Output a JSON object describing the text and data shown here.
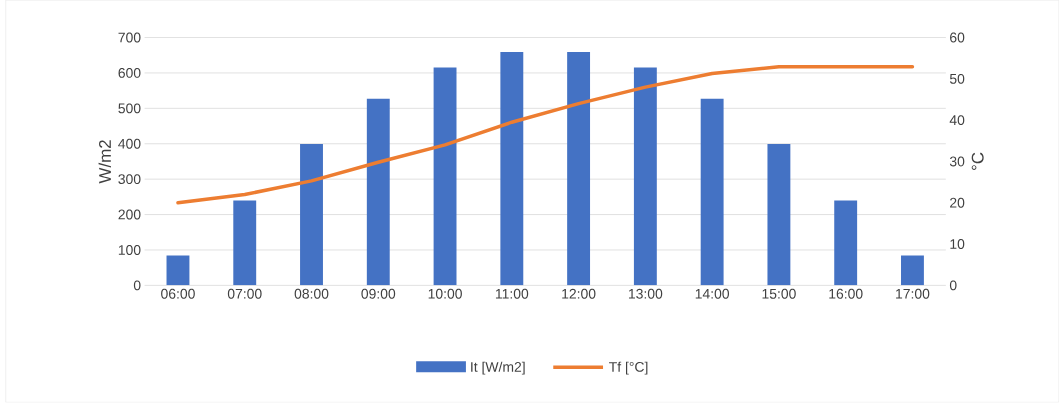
{
  "chart_data": {
    "type": "bar",
    "categories": [
      "06:00",
      "07:00",
      "08:00",
      "09:00",
      "10:00",
      "11:00",
      "12:00",
      "13:00",
      "14:00",
      "15:00",
      "16:00",
      "17:00"
    ],
    "series": [
      {
        "name": "It [W/m2]",
        "color": "#4472c4",
        "values": [
          84,
          240,
          399,
          527,
          615,
          659,
          659,
          615,
          527,
          399,
          240,
          84
        ]
      },
      {
        "name": "Tf [°C]",
        "color": "#ed7d31",
        "type": "line",
        "axis": "y2",
        "values": [
          20.0,
          22.0,
          25.3,
          29.8,
          34.0,
          39.5,
          44.0,
          48.0,
          51.3,
          52.9,
          52.9,
          52.9
        ]
      }
    ],
    "ylabel": "W/m2",
    "y2label": "°C",
    "ylim": [
      0,
      700
    ],
    "yticks": [
      0,
      100,
      200,
      300,
      400,
      500,
      600,
      700
    ],
    "y2lim": [
      0,
      60
    ],
    "y2ticks": [
      0,
      10,
      20,
      30,
      40,
      50,
      60
    ],
    "grid": "y",
    "legend": "bottom",
    "marker": "none",
    "line_style": "solid"
  }
}
